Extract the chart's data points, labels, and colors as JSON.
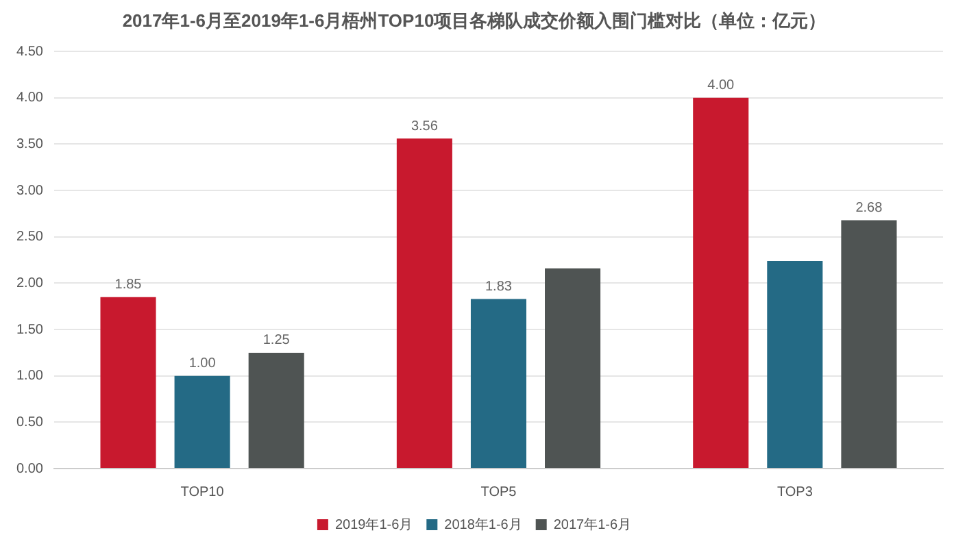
{
  "chart_data": {
    "type": "bar",
    "title": "2017年1-6月至2019年1-6月梧州TOP10项目各梯队成交价额入围门槛对比（单位：亿元）",
    "categories": [
      "TOP10",
      "TOP5",
      "TOP3"
    ],
    "series": [
      {
        "name": "2019年1-6月",
        "color": "#c8192e",
        "values": [
          1.85,
          3.56,
          4.0
        ],
        "value_labels": [
          "1.85",
          "3.56",
          "4.00"
        ]
      },
      {
        "name": "2018年1-6月",
        "color": "#246a85",
        "values": [
          1.0,
          1.83,
          2.24
        ],
        "value_labels": [
          "1.00",
          "1.83",
          null
        ]
      },
      {
        "name": "2017年1-6月",
        "color": "#4f5453",
        "values": [
          1.25,
          2.16,
          2.68
        ],
        "value_labels": [
          "1.25",
          null,
          "2.68"
        ]
      }
    ],
    "ylim": [
      0,
      4.5
    ],
    "yticks": [
      {
        "value": 0,
        "label": "0.00"
      },
      {
        "value": 0.5,
        "label": "0.50"
      },
      {
        "value": 1,
        "label": "1.00"
      },
      {
        "value": 1.5,
        "label": "1.50"
      },
      {
        "value": 2,
        "label": "2.00"
      },
      {
        "value": 2.5,
        "label": "2.50"
      },
      {
        "value": 3,
        "label": "3.00"
      },
      {
        "value": 3.5,
        "label": "3.50"
      },
      {
        "value": 4,
        "label": "4.00"
      },
      {
        "value": 4.5,
        "label": "4.50"
      }
    ],
    "grid": "y",
    "legend": "bottom"
  }
}
